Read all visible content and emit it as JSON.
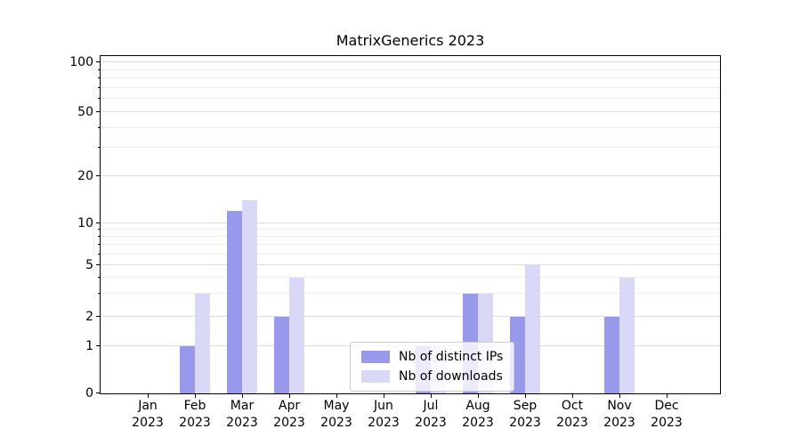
{
  "chart_data": {
    "type": "bar",
    "title": "MatrixGenerics 2023",
    "categories": [
      "Jan",
      "Feb",
      "Mar",
      "Apr",
      "May",
      "Jun",
      "Jul",
      "Aug",
      "Sep",
      "Oct",
      "Nov",
      "Dec"
    ],
    "x_year_label": "2023",
    "series": [
      {
        "name": "Nb of distinct IPs",
        "color": "#9999ec",
        "values": [
          0,
          1,
          12,
          2,
          0,
          0,
          1,
          3,
          2,
          0,
          2,
          0
        ]
      },
      {
        "name": "Nb of downloads",
        "color": "#d9d9f7",
        "values": [
          0,
          3,
          14,
          4,
          0,
          0,
          1,
          3,
          5,
          0,
          4,
          0
        ]
      }
    ],
    "y_axis": {
      "major_ticks": [
        0,
        1,
        2,
        5,
        10,
        20,
        50,
        100
      ],
      "minor_ticks": [
        3,
        4,
        6,
        7,
        8,
        9,
        30,
        40,
        60,
        70,
        80,
        90
      ],
      "range": [
        0,
        112
      ],
      "scale": "log-like"
    },
    "legend": {
      "position": "lower center inside plot"
    },
    "grid": "horizontal major and minor gridlines",
    "colors": {
      "bar_distinct_ips": "#9999ec",
      "bar_downloads": "#d9d9f7",
      "grid_major": "#dcdcdc",
      "grid_minor": "#ececec",
      "axis": "#000000",
      "legend_border": "#cccccc"
    }
  }
}
